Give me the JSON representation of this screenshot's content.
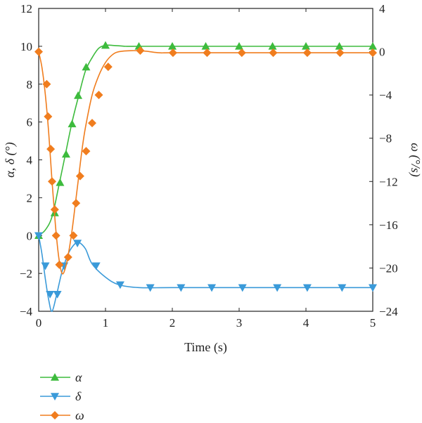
{
  "chart_data": {
    "type": "line",
    "xlabel": "Time (s)",
    "ylabel_left": "α, δ (°)",
    "ylabel_right": "ω (°/s)",
    "xlim": [
      0,
      5
    ],
    "ylim_left": [
      -4,
      12
    ],
    "ylim_right": [
      -24,
      4
    ],
    "x_ticks": [
      0,
      1,
      2,
      3,
      4,
      5
    ],
    "y_left_ticks": [
      -4,
      -2,
      0,
      2,
      4,
      6,
      8,
      10,
      12
    ],
    "y_right_ticks": [
      -24,
      -20,
      -16,
      -12,
      -8,
      -4,
      0,
      4
    ],
    "grid": false,
    "legend_position": "bottom-left",
    "series": [
      {
        "name": "α",
        "axis": "left",
        "color": "#3dbb3d",
        "marker": "triangle-up",
        "curve": [
          [
            0,
            0
          ],
          [
            0.1,
            0.3
          ],
          [
            0.2,
            1.0
          ],
          [
            0.3,
            2.6
          ],
          [
            0.4,
            4.3
          ],
          [
            0.5,
            6.0
          ],
          [
            0.6,
            7.4
          ],
          [
            0.7,
            8.7
          ],
          [
            0.8,
            9.4
          ],
          [
            0.9,
            9.9
          ],
          [
            1.0,
            10.05
          ],
          [
            1.1,
            10.05
          ],
          [
            1.3,
            10.0
          ],
          [
            1.5,
            10.0
          ],
          [
            2.0,
            10.0
          ],
          [
            3.0,
            10.0
          ],
          [
            4.0,
            10.0
          ],
          [
            5.0,
            10.0
          ]
        ],
        "markers": [
          [
            0.0,
            0.0
          ],
          [
            0.24,
            1.2
          ],
          [
            0.32,
            2.8
          ],
          [
            0.41,
            4.3
          ],
          [
            0.5,
            5.9
          ],
          [
            0.59,
            7.4
          ],
          [
            0.71,
            8.9
          ],
          [
            1.0,
            10.05
          ],
          [
            1.5,
            10.0
          ],
          [
            2.0,
            10.0
          ],
          [
            2.5,
            10.0
          ],
          [
            3.0,
            10.0
          ],
          [
            3.5,
            10.0
          ],
          [
            4.0,
            10.0
          ],
          [
            4.5,
            10.0
          ],
          [
            5.0,
            10.0
          ]
        ]
      },
      {
        "name": "δ",
        "axis": "left",
        "color": "#3a9ad9",
        "marker": "triangle-down",
        "curve": [
          [
            0,
            0
          ],
          [
            0.05,
            -1.0
          ],
          [
            0.1,
            -2.3
          ],
          [
            0.15,
            -3.4
          ],
          [
            0.2,
            -4.0
          ],
          [
            0.27,
            -3.1
          ],
          [
            0.35,
            -1.9
          ],
          [
            0.45,
            -0.9
          ],
          [
            0.55,
            -0.4
          ],
          [
            0.6,
            -0.35
          ],
          [
            0.7,
            -0.7
          ],
          [
            0.8,
            -1.5
          ],
          [
            1.0,
            -2.2
          ],
          [
            1.2,
            -2.6
          ],
          [
            1.5,
            -2.75
          ],
          [
            2.0,
            -2.75
          ],
          [
            3.0,
            -2.75
          ],
          [
            4.0,
            -2.75
          ],
          [
            5.0,
            -2.75
          ]
        ],
        "markers": [
          [
            0.0,
            0.0
          ],
          [
            0.1,
            -1.6
          ],
          [
            0.17,
            -3.1
          ],
          [
            0.28,
            -3.1
          ],
          [
            0.38,
            -1.6
          ],
          [
            0.58,
            -0.4
          ],
          [
            0.86,
            -1.6
          ],
          [
            1.22,
            -2.6
          ],
          [
            1.67,
            -2.75
          ],
          [
            2.13,
            -2.75
          ],
          [
            2.59,
            -2.75
          ],
          [
            3.05,
            -2.75
          ],
          [
            3.57,
            -2.75
          ],
          [
            4.02,
            -2.75
          ],
          [
            4.54,
            -2.75
          ],
          [
            5.0,
            -2.75
          ]
        ]
      },
      {
        "name": "ω",
        "axis": "right",
        "color": "#f07d1e",
        "marker": "diamond",
        "curve": [
          [
            0,
            0
          ],
          [
            0.05,
            -1.5
          ],
          [
            0.1,
            -4.0
          ],
          [
            0.15,
            -7.5
          ],
          [
            0.2,
            -12.0
          ],
          [
            0.25,
            -16.0
          ],
          [
            0.3,
            -19.0
          ],
          [
            0.35,
            -20.5
          ],
          [
            0.4,
            -20.0
          ],
          [
            0.45,
            -18.5
          ],
          [
            0.5,
            -16.5
          ],
          [
            0.55,
            -14.0
          ],
          [
            0.6,
            -11.5
          ],
          [
            0.65,
            -9.0
          ],
          [
            0.7,
            -7.0
          ],
          [
            0.8,
            -4.0
          ],
          [
            0.9,
            -2.2
          ],
          [
            1.0,
            -1.0
          ],
          [
            1.1,
            -0.3
          ],
          [
            1.2,
            0.0
          ],
          [
            1.4,
            0.1
          ],
          [
            1.6,
            0.05
          ],
          [
            1.8,
            -0.1
          ],
          [
            2.0,
            -0.1
          ],
          [
            3.0,
            -0.1
          ],
          [
            4.0,
            -0.1
          ],
          [
            5.0,
            -0.1
          ]
        ],
        "markers": [
          [
            0.0,
            0.0
          ],
          [
            0.12,
            -3.0
          ],
          [
            0.14,
            -6.0
          ],
          [
            0.18,
            -9.0
          ],
          [
            0.2,
            -12.0
          ],
          [
            0.24,
            -14.6
          ],
          [
            0.26,
            -17.0
          ],
          [
            0.31,
            -19.7
          ],
          [
            0.44,
            -19.0
          ],
          [
            0.52,
            -17.0
          ],
          [
            0.56,
            -14.0
          ],
          [
            0.62,
            -11.5
          ],
          [
            0.71,
            -9.2
          ],
          [
            0.8,
            -6.6
          ],
          [
            0.9,
            -4.0
          ],
          [
            1.04,
            -1.4
          ],
          [
            1.52,
            0.1
          ],
          [
            2.01,
            -0.1
          ],
          [
            2.52,
            -0.1
          ],
          [
            3.04,
            -0.1
          ],
          [
            3.51,
            -0.1
          ],
          [
            4.02,
            -0.1
          ],
          [
            4.51,
            -0.1
          ],
          [
            5.0,
            -0.1
          ]
        ]
      }
    ]
  }
}
